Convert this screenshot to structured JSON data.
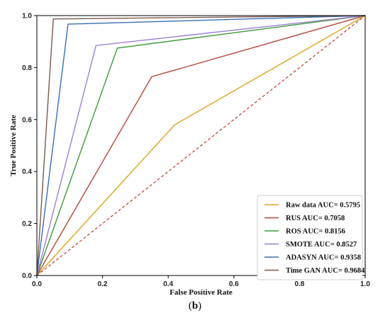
{
  "caption": {
    "open": "(",
    "letter": "b",
    "close": ")"
  },
  "chart_data": {
    "type": "line",
    "title": "",
    "xlabel": "False Positive Rate",
    "ylabel": "True Positive Rate",
    "xlim": [
      0.0,
      1.0
    ],
    "ylim": [
      0.0,
      1.0
    ],
    "xticks": [
      "0.0",
      "0.2",
      "0.4",
      "0.6",
      "0.8",
      "1.0"
    ],
    "yticks": [
      "0.0",
      "0.2",
      "0.4",
      "0.6",
      "0.8",
      "1.0"
    ],
    "grid": false,
    "legend_position": "bottom-right",
    "series": [
      {
        "name": "Raw data AUC= 0.5795",
        "color": "#daa520",
        "x": [
          0,
          0.42,
          1
        ],
        "y": [
          0,
          0.58,
          1
        ]
      },
      {
        "name": "RUS AUC= 0.7058",
        "color": "#b5473a",
        "x": [
          0,
          0.35,
          1
        ],
        "y": [
          0,
          0.765,
          1
        ]
      },
      {
        "name": "ROS AUC= 0.8156",
        "color": "#3f9a3a",
        "x": [
          0,
          0.245,
          1
        ],
        "y": [
          0,
          0.875,
          1
        ]
      },
      {
        "name": "SMOTE AUC= 0.8527",
        "color": "#9b7fd4",
        "x": [
          0,
          0.18,
          1
        ],
        "y": [
          0,
          0.885,
          1
        ]
      },
      {
        "name": "ADASYN AUC= 0.9358",
        "color": "#3a6fb0",
        "x": [
          0,
          0.095,
          1
        ],
        "y": [
          0,
          0.967,
          1
        ]
      },
      {
        "name": "Time GAN AUC= 0.9684",
        "color": "#7a5a4e",
        "x": [
          0,
          0.05,
          1
        ],
        "y": [
          0,
          0.987,
          1
        ]
      }
    ],
    "reference_line": {
      "x": [
        0,
        1
      ],
      "y": [
        0,
        1
      ],
      "color": "#c0392b",
      "style": "dashed"
    }
  }
}
